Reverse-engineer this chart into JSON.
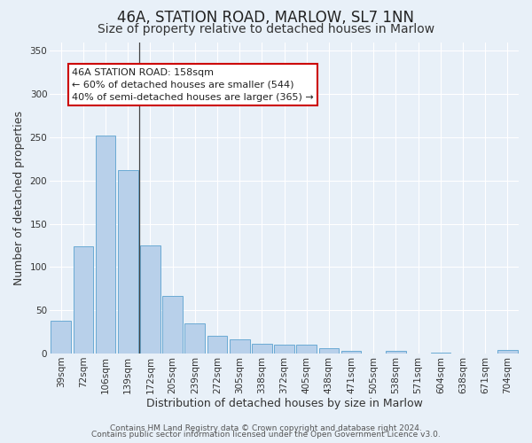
{
  "title": "46A, STATION ROAD, MARLOW, SL7 1NN",
  "subtitle": "Size of property relative to detached houses in Marlow",
  "xlabel": "Distribution of detached houses by size in Marlow",
  "ylabel": "Number of detached properties",
  "categories": [
    "39sqm",
    "72sqm",
    "106sqm",
    "139sqm",
    "172sqm",
    "205sqm",
    "239sqm",
    "272sqm",
    "305sqm",
    "338sqm",
    "372sqm",
    "405sqm",
    "438sqm",
    "471sqm",
    "505sqm",
    "538sqm",
    "571sqm",
    "604sqm",
    "638sqm",
    "671sqm",
    "704sqm"
  ],
  "values": [
    38,
    124,
    252,
    212,
    125,
    67,
    35,
    21,
    16,
    11,
    10,
    10,
    6,
    3,
    0,
    3,
    0,
    1,
    0,
    0,
    4
  ],
  "bar_color": "#b8d0ea",
  "bar_edge_color": "#6aaad4",
  "background_color": "#e8f0f8",
  "grid_color": "#ffffff",
  "annotation_text_line1": "46A STATION ROAD: 158sqm",
  "annotation_text_line2": "← 60% of detached houses are smaller (544)",
  "annotation_text_line3": "40% of semi-detached houses are larger (365) →",
  "annotation_box_facecolor": "#ffffff",
  "annotation_box_edgecolor": "#cc0000",
  "marker_line_bar_index": 3,
  "ylim": [
    0,
    360
  ],
  "yticks": [
    0,
    50,
    100,
    150,
    200,
    250,
    300,
    350
  ],
  "footer_line1": "Contains HM Land Registry data © Crown copyright and database right 2024.",
  "footer_line2": "Contains public sector information licensed under the Open Government Licence v3.0.",
  "title_fontsize": 12,
  "subtitle_fontsize": 10,
  "xlabel_fontsize": 9,
  "ylabel_fontsize": 9,
  "tick_fontsize": 7.5,
  "annotation_fontsize": 8,
  "footer_fontsize": 6.5
}
